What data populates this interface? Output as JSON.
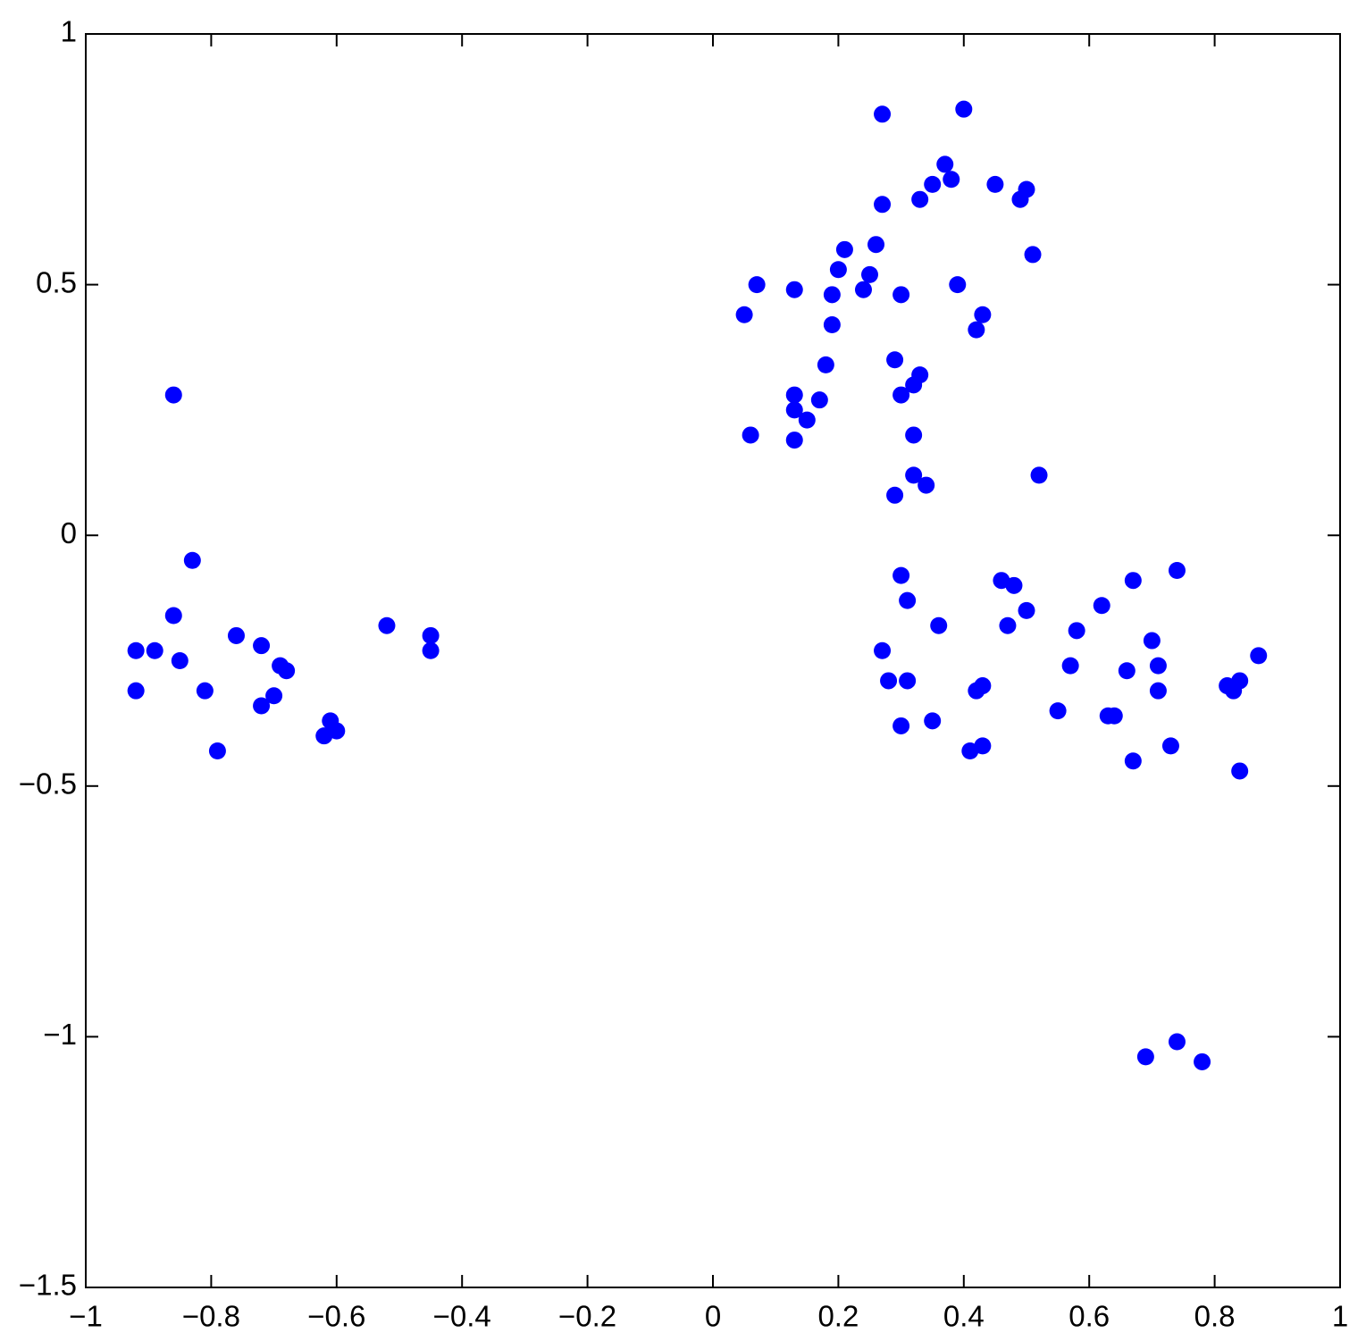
{
  "chart_data": {
    "type": "scatter",
    "color": "#0000ff",
    "xlim": [
      -1,
      1
    ],
    "ylim": [
      -1.5,
      1
    ],
    "xticks": [
      {
        "value": -1,
        "label": "−1"
      },
      {
        "value": -0.8,
        "label": "−0.8"
      },
      {
        "value": -0.6,
        "label": "−0.6"
      },
      {
        "value": -0.4,
        "label": "−0.4"
      },
      {
        "value": -0.2,
        "label": "−0.2"
      },
      0,
      0.2,
      0.4,
      0.6,
      0.8,
      1
    ],
    "yticks": [
      {
        "value": -1.5,
        "label": "−1.5"
      },
      {
        "value": -1,
        "label": "−1"
      },
      {
        "value": -0.5,
        "label": "−0.5"
      },
      0,
      0.5,
      1
    ],
    "grid": false,
    "x": [
      -0.86,
      -0.83,
      -0.86,
      -0.92,
      -0.89,
      -0.85,
      -0.92,
      -0.81,
      -0.79,
      -0.76,
      -0.72,
      -0.69,
      -0.68,
      -0.7,
      -0.72,
      -0.61,
      -0.62,
      -0.6,
      -0.52,
      -0.45,
      -0.45,
      0.27,
      0.4,
      0.37,
      0.38,
      0.35,
      0.33,
      0.45,
      0.5,
      0.49,
      0.27,
      0.26,
      0.21,
      0.51,
      0.2,
      0.25,
      0.07,
      0.13,
      0.24,
      0.19,
      0.3,
      0.39,
      0.05,
      0.43,
      0.19,
      0.42,
      0.29,
      0.18,
      0.33,
      0.32,
      0.3,
      0.13,
      0.17,
      0.13,
      0.15,
      0.06,
      0.13,
      0.32,
      0.52,
      0.32,
      0.34,
      0.29,
      0.3,
      0.31,
      0.36,
      0.46,
      0.48,
      0.5,
      0.47,
      0.67,
      0.74,
      0.62,
      0.58,
      0.27,
      0.28,
      0.31,
      0.3,
      0.35,
      0.42,
      0.43,
      0.41,
      0.43,
      0.55,
      0.57,
      0.63,
      0.64,
      0.66,
      0.7,
      0.71,
      0.71,
      0.67,
      0.73,
      0.82,
      0.83,
      0.84,
      0.87,
      0.84,
      0.69,
      0.74,
      0.78
    ],
    "values": [
      0.28,
      -0.05,
      -0.16,
      -0.23,
      -0.23,
      -0.25,
      -0.31,
      -0.31,
      -0.43,
      -0.2,
      -0.22,
      -0.26,
      -0.27,
      -0.32,
      -0.34,
      -0.37,
      -0.4,
      -0.39,
      -0.18,
      -0.2,
      -0.23,
      0.84,
      0.85,
      0.74,
      0.71,
      0.7,
      0.67,
      0.7,
      0.69,
      0.67,
      0.66,
      0.58,
      0.57,
      0.56,
      0.53,
      0.52,
      0.5,
      0.49,
      0.49,
      0.48,
      0.48,
      0.5,
      0.44,
      0.44,
      0.42,
      0.41,
      0.35,
      0.34,
      0.32,
      0.3,
      0.28,
      0.28,
      0.27,
      0.25,
      0.23,
      0.2,
      0.19,
      0.2,
      0.12,
      0.12,
      0.1,
      0.08,
      -0.08,
      -0.13,
      -0.18,
      -0.09,
      -0.1,
      -0.15,
      -0.18,
      -0.09,
      -0.07,
      -0.14,
      -0.19,
      -0.23,
      -0.29,
      -0.29,
      -0.38,
      -0.37,
      -0.31,
      -0.3,
      -0.43,
      -0.42,
      -0.35,
      -0.26,
      -0.36,
      -0.36,
      -0.27,
      -0.21,
      -0.26,
      -0.31,
      -0.45,
      -0.42,
      -0.3,
      -0.31,
      -0.29,
      -0.24,
      -0.47,
      -1.04,
      -1.01,
      -1.05
    ]
  }
}
